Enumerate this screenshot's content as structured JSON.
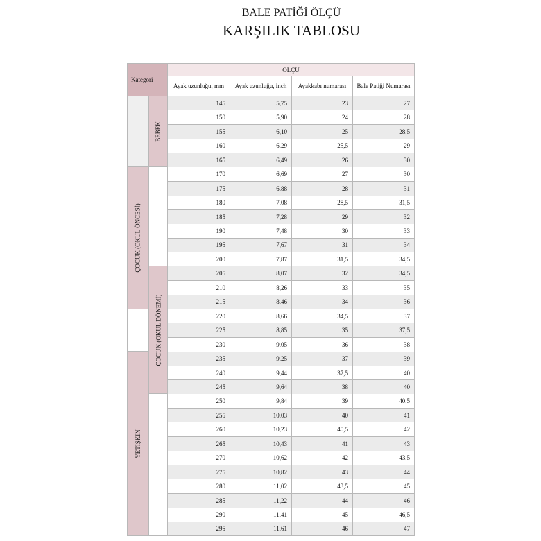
{
  "title": {
    "line1": "BALE PATİĞİ ÖLÇÜ",
    "line2": "KARŞILIK TABLOSU"
  },
  "table": {
    "category_header": "Kategori",
    "group_header": "ÖLÇÜ",
    "columns": [
      "Ayak uzunluğu, mm",
      "Ayak uzunluğu, inch",
      "Ayakkabı numarası",
      "Bale Patiği Numarası"
    ],
    "rows": [
      [
        "145",
        "5,75",
        "23",
        "27"
      ],
      [
        "150",
        "5,90",
        "24",
        "28"
      ],
      [
        "155",
        "6,10",
        "25",
        "28,5"
      ],
      [
        "160",
        "6,29",
        "25,5",
        "29"
      ],
      [
        "165",
        "6,49",
        "26",
        "30"
      ],
      [
        "170",
        "6,69",
        "27",
        "30"
      ],
      [
        "175",
        "6,88",
        "28",
        "31"
      ],
      [
        "180",
        "7,08",
        "28,5",
        "31,5"
      ],
      [
        "185",
        "7,28",
        "29",
        "32"
      ],
      [
        "190",
        "7,48",
        "30",
        "33"
      ],
      [
        "195",
        "7,67",
        "31",
        "34"
      ],
      [
        "200",
        "7,87",
        "31,5",
        "34,5"
      ],
      [
        "205",
        "8,07",
        "32",
        "34,5"
      ],
      [
        "210",
        "8,26",
        "33",
        "35"
      ],
      [
        "215",
        "8,46",
        "34",
        "36"
      ],
      [
        "220",
        "8,66",
        "34,5",
        "37"
      ],
      [
        "225",
        "8,85",
        "35",
        "37,5"
      ],
      [
        "230",
        "9,05",
        "36",
        "38"
      ],
      [
        "235",
        "9,25",
        "37",
        "39"
      ],
      [
        "240",
        "9,44",
        "37,5",
        "40"
      ],
      [
        "245",
        "9,64",
        "38",
        "40"
      ],
      [
        "250",
        "9,84",
        "39",
        "40,5"
      ],
      [
        "255",
        "10,03",
        "40",
        "41"
      ],
      [
        "260",
        "10,23",
        "40,5",
        "42"
      ],
      [
        "265",
        "10,43",
        "41",
        "43"
      ],
      [
        "270",
        "10,62",
        "42",
        "43,5"
      ],
      [
        "275",
        "10,82",
        "43",
        "44"
      ],
      [
        "280",
        "11,02",
        "43,5",
        "45"
      ],
      [
        "285",
        "11,22",
        "44",
        "46"
      ],
      [
        "290",
        "11,41",
        "45",
        "46,5"
      ],
      [
        "295",
        "11,61",
        "46",
        "47"
      ]
    ],
    "category_col1": [
      {
        "from_mm": 145,
        "to_mm": 165,
        "label": "",
        "fill": "#efefef"
      },
      {
        "from_mm": 170,
        "to_mm": 215,
        "label": "ÇOCUK  (OKUL ÖNCESİ)",
        "fill": "#dfc7cb"
      },
      {
        "from_mm": 220,
        "to_mm": 230,
        "label": "",
        "fill": "#ffffff"
      },
      {
        "from_mm": 235,
        "to_mm": 295,
        "label": "YETİŞKİN",
        "fill": "#dfc7cb"
      }
    ],
    "category_col2": [
      {
        "from_mm": 145,
        "to_mm": 165,
        "label": "BEBEK",
        "fill": "#dfc7cb"
      },
      {
        "from_mm": 170,
        "to_mm": 200,
        "label": "",
        "fill": "#ffffff"
      },
      {
        "from_mm": 205,
        "to_mm": 245,
        "label": "ÇOCUK (OKUL DÖNEMİ)",
        "fill": "#dfc7cb"
      },
      {
        "from_mm": 250,
        "to_mm": 295,
        "label": "",
        "fill": "#ffffff"
      }
    ],
    "colors": {
      "category_header": "#d4b4b9",
      "group_header": "#f3e6e8",
      "stripe": "#ebebeb",
      "border": "#b8b8b8"
    }
  }
}
